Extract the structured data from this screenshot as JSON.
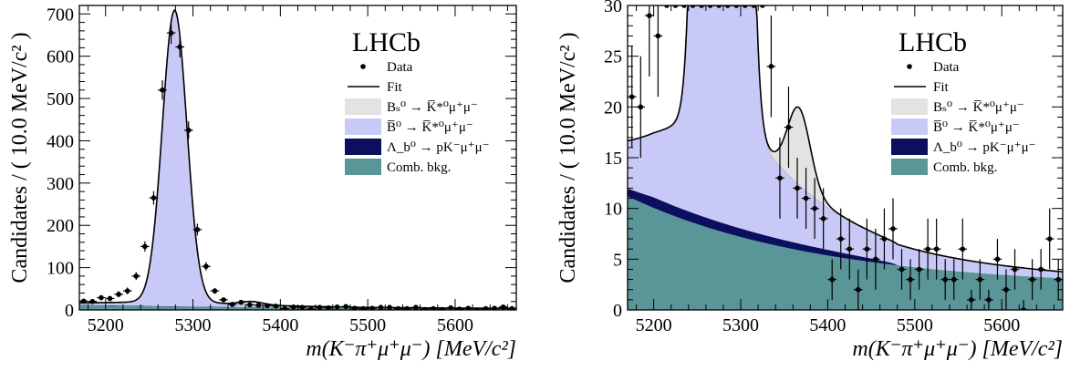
{
  "chart_data": [
    {
      "type": "line",
      "experiment_label": "LHCb",
      "ylabel": "Candidates / ( 10.0 MeV/c² )",
      "xlabel": "m(K⁻π⁺μ⁺μ⁻) [MeV/c²]",
      "xlim": [
        5170,
        5670
      ],
      "ylim": [
        0,
        720
      ],
      "x_ticks": [
        5200,
        5300,
        5400,
        5500,
        5600
      ],
      "y_ticks": [
        0,
        100,
        200,
        300,
        400,
        500,
        600,
        700
      ],
      "grid": false,
      "legend_position": "top-right",
      "legend": [
        {
          "label": "Data",
          "kind": "point"
        },
        {
          "label": "Fit",
          "kind": "line"
        },
        {
          "label": "Bₛ⁰ → K̅*⁰μ⁺μ⁻",
          "kind": "fill",
          "color": "#e3e3e3"
        },
        {
          "label": "B̅⁰ → K̅*⁰μ⁺μ⁻",
          "kind": "fill",
          "color": "#c9c9f7"
        },
        {
          "label": "Λ_b⁰ → pK⁻μ⁺μ⁻",
          "kind": "fill",
          "color": "#0b0f5e"
        },
        {
          "label": "Comb. bkg.",
          "kind": "fill",
          "color": "#5a9597"
        }
      ],
      "data": {
        "x": [
          5175,
          5185,
          5195,
          5205,
          5215,
          5225,
          5235,
          5245,
          5255,
          5265,
          5275,
          5285,
          5295,
          5305,
          5315,
          5325,
          5335,
          5345,
          5355,
          5365,
          5375,
          5385,
          5395,
          5405,
          5415,
          5425,
          5435,
          5445,
          5455,
          5465,
          5475,
          5485,
          5495,
          5505,
          5515,
          5525,
          5535,
          5545,
          5555,
          5565,
          5575,
          5585,
          5595,
          5605,
          5615,
          5625,
          5635,
          5645,
          5655,
          5665
        ],
        "y": [
          21,
          20,
          29,
          27,
          37,
          45,
          80,
          150,
          265,
          520,
          655,
          622,
          425,
          190,
          103,
          45,
          24,
          13,
          18,
          12,
          11,
          10,
          9,
          3,
          7,
          6,
          2,
          6,
          5,
          7,
          8,
          4,
          3,
          4,
          6,
          6,
          3,
          3,
          6,
          1,
          3,
          1,
          5,
          2,
          4,
          0,
          3,
          4,
          7,
          3
        ],
        "errors": [
          5,
          5,
          6,
          6,
          7,
          8,
          9,
          12,
          16,
          23,
          26,
          25,
          21,
          14,
          10,
          7,
          5,
          4,
          4,
          3,
          3,
          3,
          3,
          2,
          3,
          3,
          2,
          3,
          3,
          3,
          3,
          2,
          2,
          2,
          3,
          3,
          2,
          2,
          3,
          1,
          2,
          1,
          2,
          2,
          2,
          1,
          2,
          2,
          3,
          2
        ]
      },
      "fit_model": {
        "signal_peak_mass": 5279,
        "signal_amplitude": 690,
        "signal_width": 14,
        "bs_peak_mass": 5367,
        "bs_amplitude": 7.5,
        "bs_width": 13,
        "comb_at_5170": 11.2,
        "comb_decay_mev": 220,
        "comb_floor": 2.2,
        "lambda_b_amplitude": 1.1,
        "lambda_b_endpoint": 5480
      }
    },
    {
      "type": "line",
      "experiment_label": "LHCb",
      "ylabel": "Candidates / ( 10.0 MeV/c² )",
      "xlabel": "m(K⁻π⁺μ⁺μ⁻) [MeV/c²]",
      "xlim": [
        5170,
        5670
      ],
      "ylim": [
        0,
        30
      ],
      "x_ticks": [
        5200,
        5300,
        5400,
        5500,
        5600
      ],
      "y_ticks": [
        0,
        5,
        10,
        15,
        20,
        25,
        30
      ],
      "grid": false,
      "legend_position": "top-right",
      "note": "zoom of the same fit and data"
    }
  ]
}
